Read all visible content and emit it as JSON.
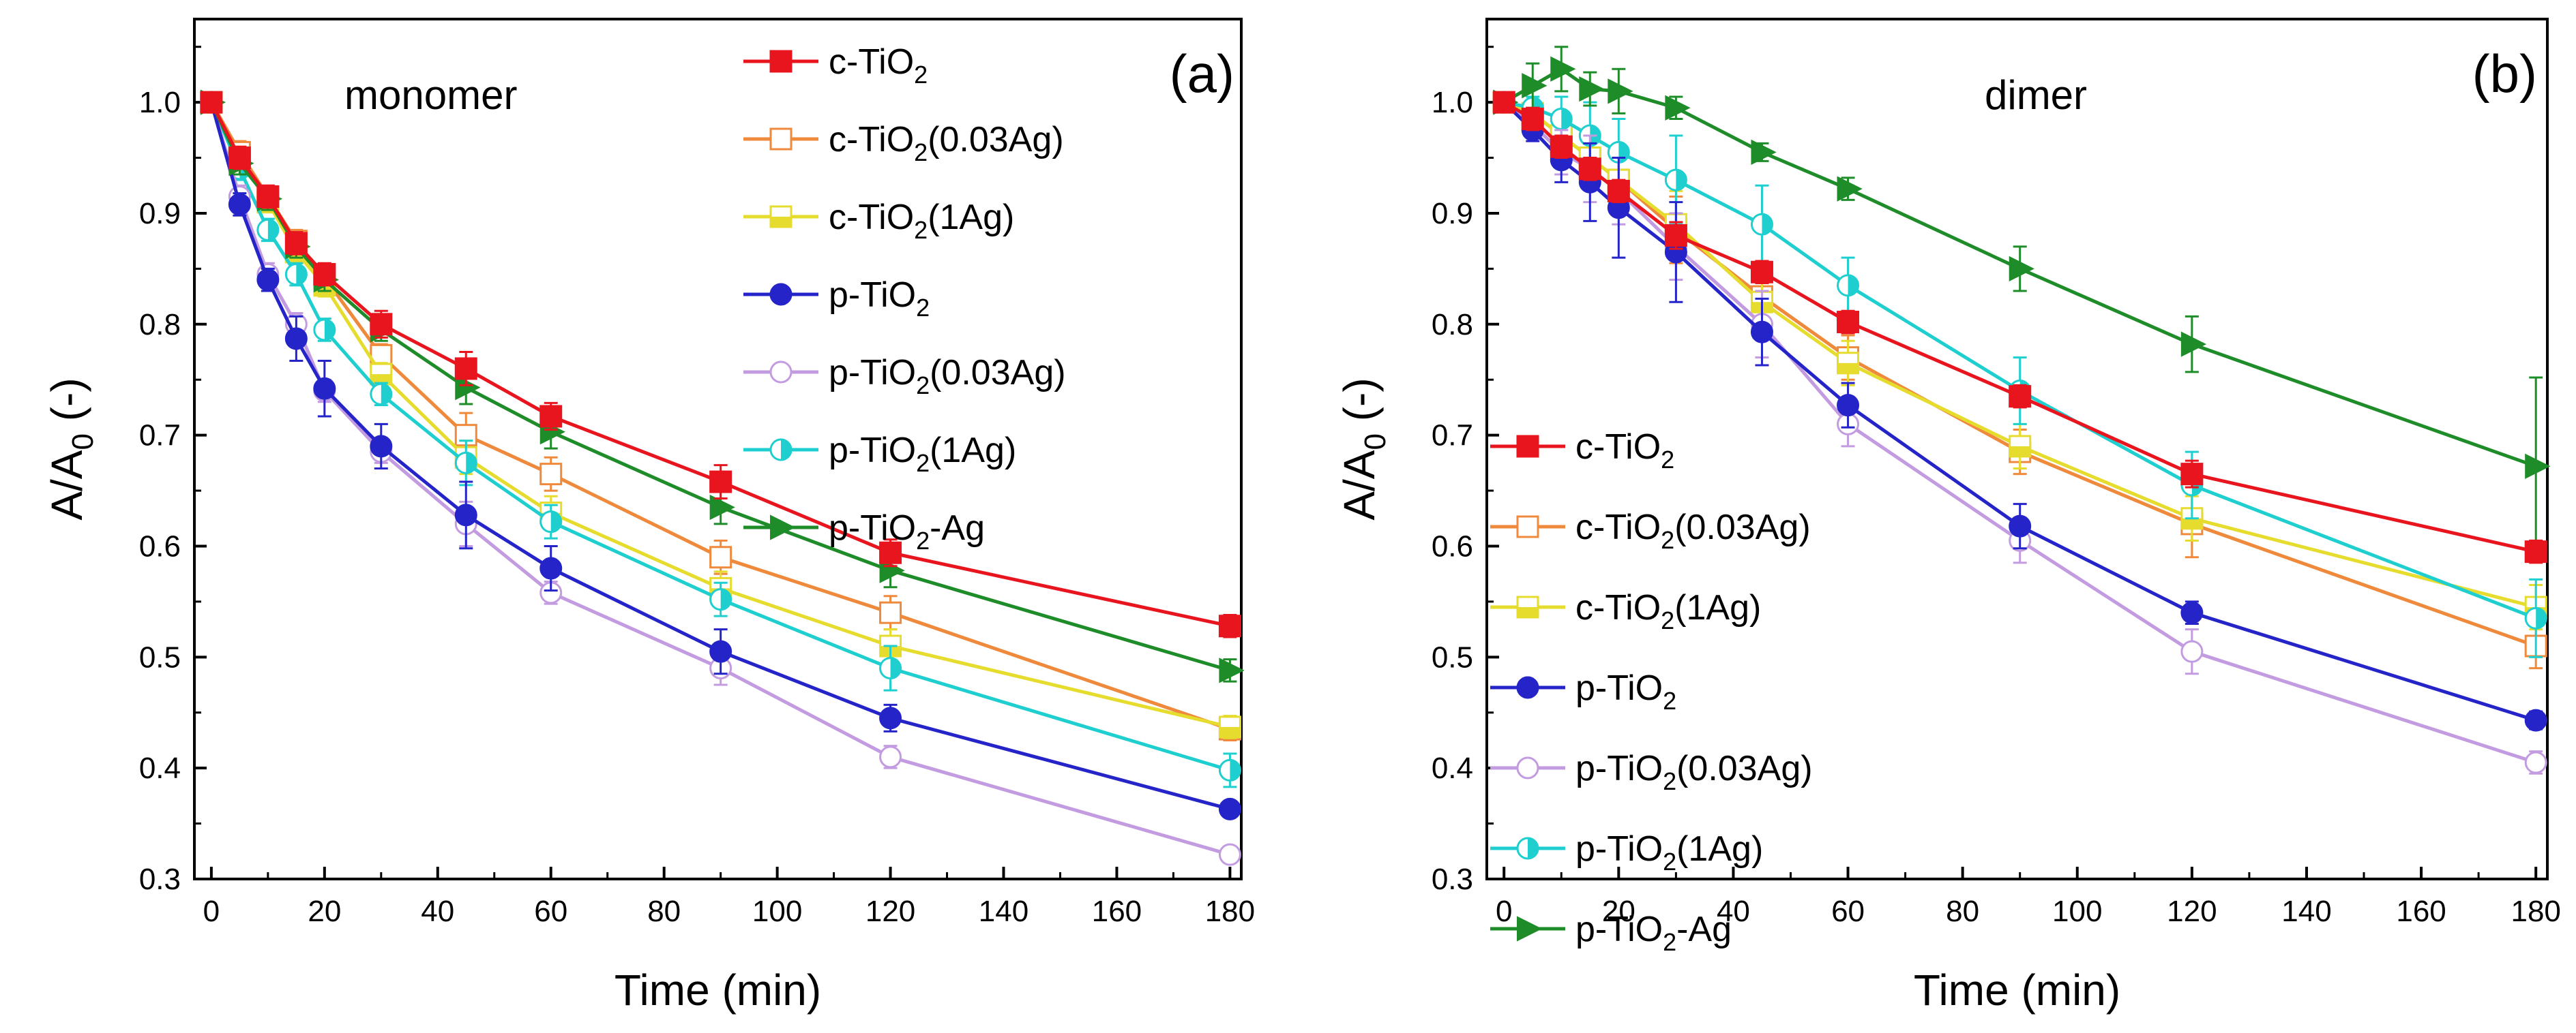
{
  "chart_data": [
    {
      "type": "line",
      "panel_label": "(a)",
      "annotation": "monomer",
      "xlabel": "Time (min)",
      "ylabel": "A/A",
      "ylabel_sub": "0",
      "ylabel_suffix": " (-)",
      "xlim": [
        -3,
        182
      ],
      "ylim": [
        0.3,
        1.075
      ],
      "xticks": [
        0,
        20,
        40,
        60,
        80,
        100,
        120,
        140,
        160,
        180
      ],
      "yticks": [
        0.3,
        0.4,
        0.5,
        0.6,
        0.7,
        0.8,
        0.9,
        1.0
      ],
      "xtick_labels": [
        "0",
        "20",
        "40",
        "60",
        "80",
        "100",
        "120",
        "140",
        "160",
        "180"
      ],
      "ytick_labels": [
        "0.3",
        "0.4",
        "0.5",
        "0.6",
        "0.7",
        "0.8",
        "0.9",
        "1.0"
      ],
      "legend_position": "top-right",
      "x": [
        0,
        5,
        10,
        15,
        20,
        30,
        45,
        60,
        90,
        120,
        180
      ],
      "series": [
        {
          "name": "c-TiO2(0.03Ag)",
          "color": "#ef8a3c",
          "marker": "square-open",
          "values": [
            1.0,
            0.955,
            0.915,
            0.875,
            0.842,
            0.772,
            0.7,
            0.665,
            0.59,
            0.54,
            0.435
          ],
          "errors": [
            0,
            0.01,
            0.008,
            0.01,
            0.01,
            0.01,
            0.02,
            0.015,
            0.015,
            0.015,
            0.01
          ]
        },
        {
          "name": "c-TiO2(1Ag)",
          "color": "#e6dc2e",
          "marker": "square-half",
          "values": [
            1.0,
            0.95,
            0.91,
            0.865,
            0.835,
            0.755,
            0.68,
            0.63,
            0.562,
            0.51,
            0.437
          ],
          "errors": [
            0,
            0.01,
            0.008,
            0.01,
            0.01,
            0.01,
            0.015,
            0.015,
            0.015,
            0.015,
            0.01
          ]
        },
        {
          "name": "p-TiO2(1Ag)",
          "color": "#1fcfcf",
          "marker": "circle-half",
          "values": [
            1.0,
            0.94,
            0.885,
            0.845,
            0.795,
            0.737,
            0.675,
            0.622,
            0.552,
            0.49,
            0.398
          ],
          "errors": [
            0,
            0.01,
            0.01,
            0.01,
            0.01,
            0.01,
            0.02,
            0.015,
            0.015,
            0.02,
            0.015
          ]
        },
        {
          "name": "p-TiO2(0.03Ag)",
          "color": "#c39be0",
          "marker": "circle-open",
          "values": [
            1.0,
            0.915,
            0.845,
            0.8,
            0.74,
            0.685,
            0.62,
            0.558,
            0.49,
            0.41,
            0.322
          ],
          "errors": [
            0,
            0.01,
            0.01,
            0.01,
            0.01,
            0.01,
            0.02,
            0.01,
            0.015,
            0.01,
            0.005
          ]
        },
        {
          "name": "p-TiO2",
          "color": "#2424c8",
          "marker": "circle",
          "values": [
            1.0,
            0.908,
            0.84,
            0.787,
            0.742,
            0.69,
            0.628,
            0.58,
            0.505,
            0.445,
            0.363
          ],
          "errors": [
            0,
            0.01,
            0.01,
            0.02,
            0.025,
            0.02,
            0.03,
            0.02,
            0.02,
            0.012,
            0.005
          ]
        },
        {
          "name": "p-TiO2-Ag",
          "color": "#1e8c28",
          "marker": "triangle-right",
          "values": [
            1.0,
            0.945,
            0.913,
            0.87,
            0.84,
            0.795,
            0.743,
            0.703,
            0.635,
            0.578,
            0.488
          ],
          "errors": [
            0,
            0.01,
            0.01,
            0.01,
            0.01,
            0.01,
            0.015,
            0.015,
            0.015,
            0.015,
            0.01
          ]
        },
        {
          "name": "c-TiO2",
          "color": "#e8141e",
          "marker": "square",
          "values": [
            1.0,
            0.95,
            0.915,
            0.873,
            0.845,
            0.8,
            0.76,
            0.717,
            0.658,
            0.594,
            0.528
          ],
          "errors": [
            0,
            0.01,
            0.01,
            0.01,
            0.01,
            0.012,
            0.015,
            0.012,
            0.015,
            0.012,
            0.01
          ]
        }
      ],
      "legend": [
        {
          "main": "c-TiO",
          "sub": "2",
          "tail": "",
          "ref": "c-TiO2"
        },
        {
          "main": "c-TiO",
          "sub": "2",
          "tail": "(0.03Ag)",
          "ref": "c-TiO2(0.03Ag)"
        },
        {
          "main": "c-TiO",
          "sub": "2",
          "tail": "(1Ag)",
          "ref": "c-TiO2(1Ag)"
        },
        {
          "main": "p-TiO",
          "sub": "2",
          "tail": "",
          "ref": "p-TiO2"
        },
        {
          "main": "p-TiO",
          "sub": "2",
          "tail": "(0.03Ag)",
          "ref": "p-TiO2(0.03Ag)"
        },
        {
          "main": "p-TiO",
          "sub": "2",
          "tail": "(1Ag)",
          "ref": "p-TiO2(1Ag)"
        },
        {
          "main": "p-TiO",
          "sub": "2",
          "tail": "-Ag",
          "ref": "p-TiO2-Ag"
        }
      ]
    },
    {
      "type": "line",
      "panel_label": "(b)",
      "annotation": "dimer",
      "xlabel": "Time (min)",
      "ylabel": "A/A",
      "ylabel_sub": "0",
      "ylabel_suffix": " (-)",
      "xlim": [
        -3,
        182
      ],
      "ylim": [
        0.3,
        1.075
      ],
      "xticks": [
        0,
        20,
        40,
        60,
        80,
        100,
        120,
        140,
        160,
        180
      ],
      "yticks": [
        0.3,
        0.4,
        0.5,
        0.6,
        0.7,
        0.8,
        0.9,
        1.0
      ],
      "xtick_labels": [
        "0",
        "20",
        "40",
        "60",
        "80",
        "100",
        "120",
        "140",
        "160",
        "180"
      ],
      "ytick_labels": [
        "0.3",
        "0.4",
        "0.5",
        "0.6",
        "0.7",
        "0.8",
        "0.9",
        "1.0"
      ],
      "legend_position": "center-left",
      "x": [
        0,
        5,
        10,
        15,
        20,
        30,
        45,
        60,
        90,
        120,
        180
      ],
      "series": [
        {
          "name": "c-TiO2(0.03Ag)",
          "color": "#ef8a3c",
          "marker": "square-open",
          "values": [
            1.0,
            0.99,
            0.97,
            0.95,
            0.93,
            0.885,
            0.825,
            0.77,
            0.685,
            0.62,
            0.51
          ],
          "errors": [
            0,
            0.01,
            0.02,
            0.02,
            0.02,
            0.03,
            0.02,
            0.02,
            0.02,
            0.03,
            0.02
          ]
        },
        {
          "name": "c-TiO2(1Ag)",
          "color": "#e6dc2e",
          "marker": "square-half",
          "values": [
            1.0,
            0.99,
            0.97,
            0.95,
            0.93,
            0.89,
            0.82,
            0.765,
            0.69,
            0.625,
            0.545
          ],
          "errors": [
            0,
            0.01,
            0.02,
            0.02,
            0.02,
            0.03,
            0.02,
            0.02,
            0.02,
            0.02,
            0.02
          ]
        },
        {
          "name": "p-TiO2(1Ag)",
          "color": "#1fcfcf",
          "marker": "circle-half",
          "values": [
            1.0,
            0.995,
            0.985,
            0.97,
            0.955,
            0.93,
            0.89,
            0.835,
            0.74,
            0.655,
            0.535
          ],
          "errors": [
            0,
            0.01,
            0.02,
            0.03,
            0.03,
            0.04,
            0.035,
            0.025,
            0.03,
            0.03,
            0.035
          ]
        },
        {
          "name": "p-TiO2(0.03Ag)",
          "color": "#c39be0",
          "marker": "circle-open",
          "values": [
            1.0,
            0.98,
            0.955,
            0.94,
            0.92,
            0.87,
            0.8,
            0.71,
            0.605,
            0.505,
            0.405
          ],
          "errors": [
            0,
            0.01,
            0.02,
            0.03,
            0.03,
            0.03,
            0.03,
            0.02,
            0.02,
            0.02,
            0.01
          ]
        },
        {
          "name": "p-TiO2",
          "color": "#2424c8",
          "marker": "circle",
          "values": [
            1.0,
            0.975,
            0.948,
            0.928,
            0.905,
            0.865,
            0.793,
            0.727,
            0.618,
            0.54,
            0.443
          ],
          "errors": [
            0,
            0.01,
            0.02,
            0.035,
            0.045,
            0.045,
            0.03,
            0.02,
            0.02,
            0.01,
            0.008
          ]
        },
        {
          "name": "p-TiO2-Ag",
          "color": "#1e8c28",
          "marker": "triangle-right",
          "values": [
            1.0,
            1.015,
            1.03,
            1.012,
            1.01,
            0.995,
            0.955,
            0.922,
            0.85,
            0.782,
            0.672
          ],
          "errors": [
            0,
            0.02,
            0.02,
            0.015,
            0.02,
            0.01,
            0.008,
            0.01,
            0.02,
            0.025,
            0.08
          ]
        },
        {
          "name": "c-TiO2",
          "color": "#e8141e",
          "marker": "square",
          "values": [
            1.0,
            0.985,
            0.96,
            0.94,
            0.92,
            0.88,
            0.847,
            0.802,
            0.735,
            0.665,
            0.595
          ],
          "errors": [
            0,
            0.01,
            0.01,
            0.01,
            0.01,
            0.012,
            0.01,
            0.01,
            0.01,
            0.012,
            0.01
          ]
        }
      ],
      "legend": [
        {
          "main": "c-TiO",
          "sub": "2",
          "tail": "",
          "ref": "c-TiO2"
        },
        {
          "main": "c-TiO",
          "sub": "2",
          "tail": "(0.03Ag)",
          "ref": "c-TiO2(0.03Ag)"
        },
        {
          "main": "c-TiO",
          "sub": "2",
          "tail": "(1Ag)",
          "ref": "c-TiO2(1Ag)"
        },
        {
          "main": "p-TiO",
          "sub": "2",
          "tail": "",
          "ref": "p-TiO2"
        },
        {
          "main": "p-TiO",
          "sub": "2",
          "tail": "(0.03Ag)",
          "ref": "p-TiO2(0.03Ag)"
        },
        {
          "main": "p-TiO",
          "sub": "2",
          "tail": "(1Ag)",
          "ref": "p-TiO2(1Ag)"
        },
        {
          "main": "p-TiO",
          "sub": "2",
          "tail": "-Ag",
          "ref": "p-TiO2-Ag"
        }
      ]
    }
  ]
}
